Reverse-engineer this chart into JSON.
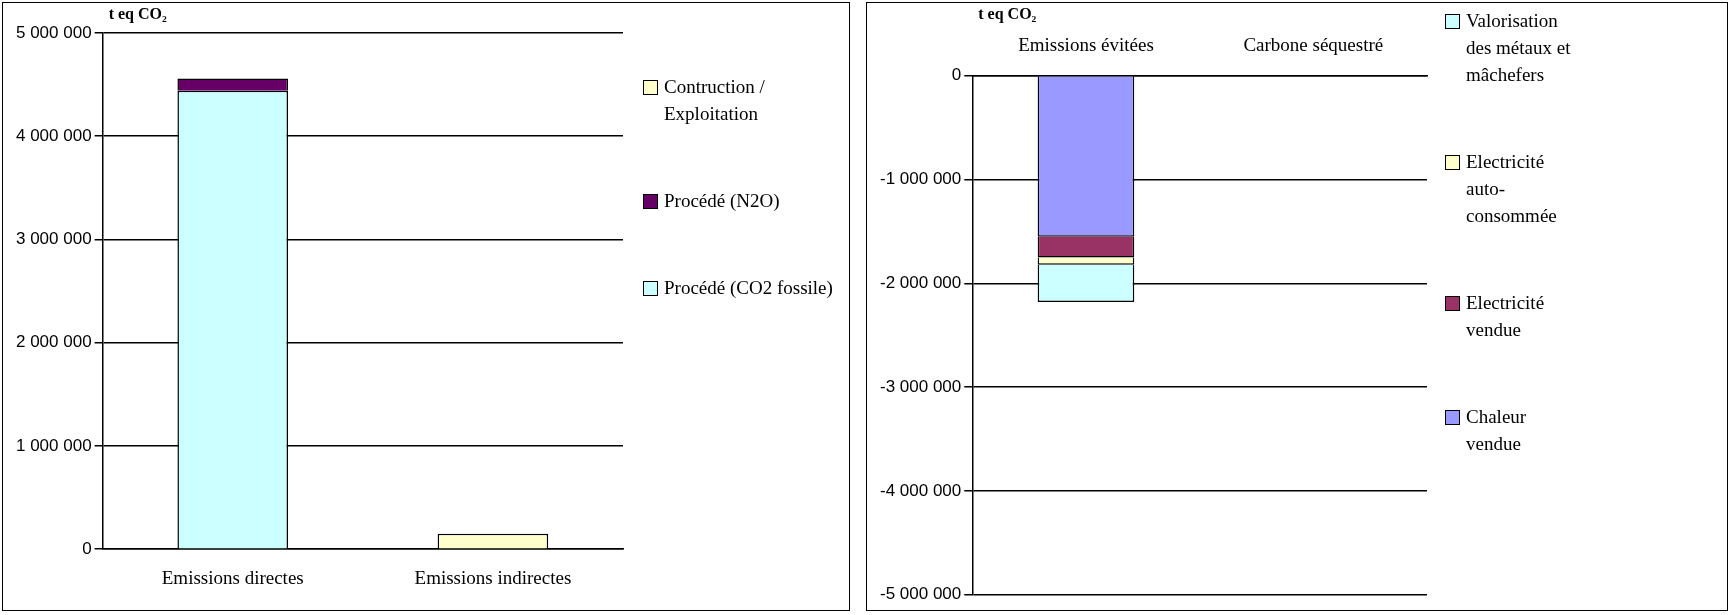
{
  "chart_data": [
    {
      "type": "bar",
      "stacked": true,
      "ylabel": "t eq CO₂",
      "categories": [
        "Emissions directes",
        "Emissions indirectes"
      ],
      "series": [
        {
          "name": "Procédé (CO2 fossile)",
          "color": "#ccffff",
          "values": [
            4440000,
            null
          ]
        },
        {
          "name": "Procédé (N2O)",
          "color": "#660066",
          "values": [
            120000,
            null
          ]
        },
        {
          "name": "Contruction / Exploitation",
          "color": "#ffffcc",
          "values": [
            null,
            150000
          ]
        }
      ],
      "ylim": [
        0,
        5000000
      ],
      "yticks": [
        {
          "value": 0,
          "label": "0"
        },
        {
          "value": 1000000,
          "label": "1 000 000"
        },
        {
          "value": 2000000,
          "label": "2 000 000"
        },
        {
          "value": 3000000,
          "label": "3 000 000"
        },
        {
          "value": 4000000,
          "label": "4 000 000"
        },
        {
          "value": 5000000,
          "label": "5 000 000"
        }
      ],
      "grid": "y",
      "legend": "right"
    },
    {
      "type": "bar",
      "stacked": true,
      "ylabel": "t eq CO₂",
      "categories": [
        "Emissions évitées",
        "Carbone séquestré"
      ],
      "series": [
        {
          "name": "Chaleur vendue",
          "color": "#9999ff",
          "values": [
            -1550000,
            null
          ]
        },
        {
          "name": "Electricité vendue",
          "color": "#993366",
          "values": [
            -200000,
            null
          ]
        },
        {
          "name": "Electricité auto-consommée",
          "color": "#ffffcc",
          "values": [
            -70000,
            null
          ]
        },
        {
          "name": "Valorisation des métaux et mâchefers",
          "color": "#ccffff",
          "values": [
            -360000,
            null
          ]
        }
      ],
      "ylim": [
        -5000000,
        0
      ],
      "yticks": [
        {
          "value": -5000000,
          "label": "-5 000 000"
        },
        {
          "value": -4000000,
          "label": "-4 000 000"
        },
        {
          "value": -3000000,
          "label": "-3 000 000"
        },
        {
          "value": -2000000,
          "label": "-2 000 000"
        },
        {
          "value": -1000000,
          "label": "-1 000 000"
        },
        {
          "value": 0,
          "label": "0"
        }
      ],
      "grid": "y",
      "legend": "right"
    }
  ]
}
